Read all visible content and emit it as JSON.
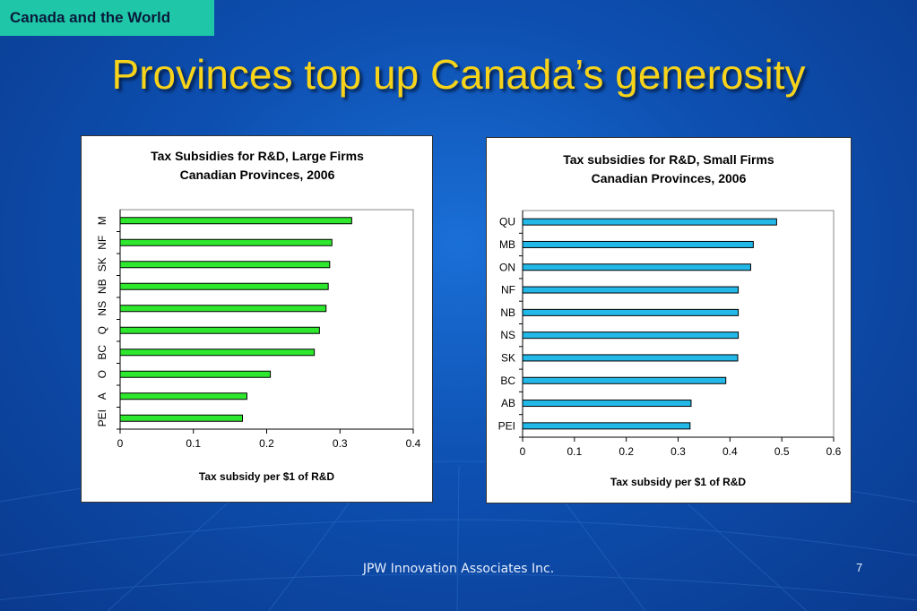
{
  "header": {
    "tag": "Canada and the World",
    "title": "Provinces top up Canada’s generosity"
  },
  "footer": {
    "text": "JPW Innovation Associates Inc.",
    "page": "7"
  },
  "colors": {
    "large_bar": "#2ee82e",
    "small_bar": "#22b8e8",
    "title": "#f7d31a",
    "tag_bg": "#1fc7a8"
  },
  "chart_data": [
    {
      "type": "bar",
      "orientation": "horizontal",
      "title": "Tax Subsidies for R&D, Large Firms",
      "subtitle": "Canadian Provinces, 2006",
      "xlabel": "Tax subsidy per $1 of R&D",
      "ylabel": "",
      "xlim": [
        0,
        0.4
      ],
      "xticks": [
        "0",
        "0.1",
        "0.2",
        "0.3",
        "0.4"
      ],
      "category_labels": [
        "PEI",
        "A",
        "O",
        "BC",
        "Q",
        "NS",
        "NB",
        "SK",
        "NF",
        "M"
      ],
      "values": [
        0.167,
        0.173,
        0.205,
        0.265,
        0.272,
        0.281,
        0.284,
        0.286,
        0.289,
        0.316
      ],
      "grid": false,
      "legend": "none"
    },
    {
      "type": "bar",
      "orientation": "horizontal",
      "title": "Tax subsidies for R&D, Small Firms",
      "subtitle": "Canadian Provinces, 2006",
      "xlabel": "Tax subsidy per $1 of R&D",
      "ylabel": "",
      "xlim": [
        0,
        0.6
      ],
      "xticks": [
        "0",
        "0.1",
        "0.2",
        "0.3",
        "0.4",
        "0.5",
        "0.6"
      ],
      "category_labels": [
        "PEI",
        "AB",
        "BC",
        "SK",
        "NS",
        "NB",
        "NF",
        "ON",
        "MB",
        "QU"
      ],
      "values": [
        0.323,
        0.325,
        0.392,
        0.415,
        0.416,
        0.416,
        0.416,
        0.44,
        0.445,
        0.49
      ],
      "grid": false,
      "legend": "none"
    }
  ]
}
